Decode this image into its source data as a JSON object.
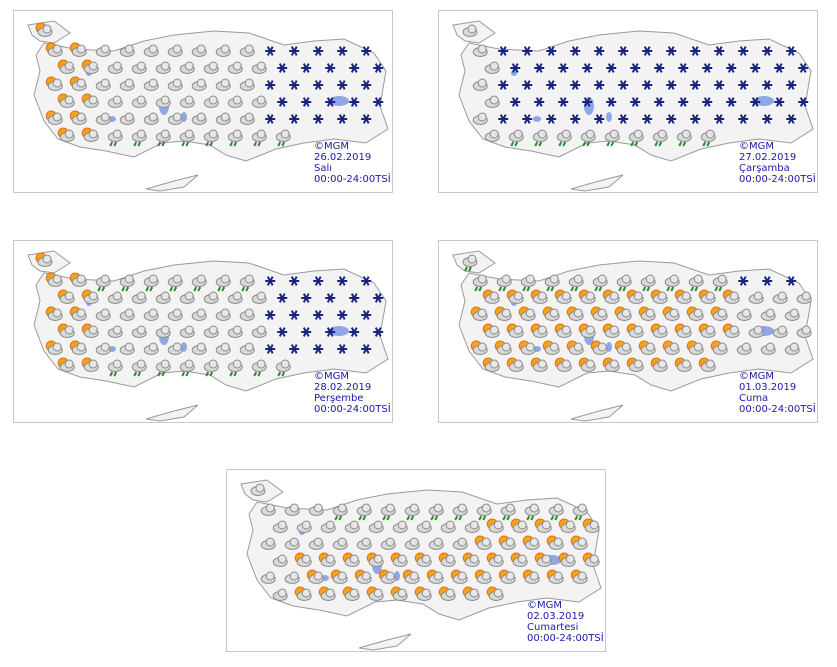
{
  "panels": [
    {
      "copyright": "©MGM",
      "date": "26.02.2019",
      "day": "Salı",
      "hours": "00:00-24:00TSİ"
    },
    {
      "copyright": "©MGM",
      "date": "27.02.2019",
      "day": "Çarşamba",
      "hours": "00:00-24:00TSİ"
    },
    {
      "copyright": "©MGM",
      "date": "28.02.2019",
      "day": "Perşembe",
      "hours": "00:00-24:00TSİ"
    },
    {
      "copyright": "©MGM",
      "date": "01.03.2019",
      "day": "Cuma",
      "hours": "00:00-24:00TSİ"
    },
    {
      "copyright": "©MGM",
      "date": "02.03.2019",
      "day": "Cumartesi",
      "hours": "00:00-24:00TSİ"
    }
  ]
}
